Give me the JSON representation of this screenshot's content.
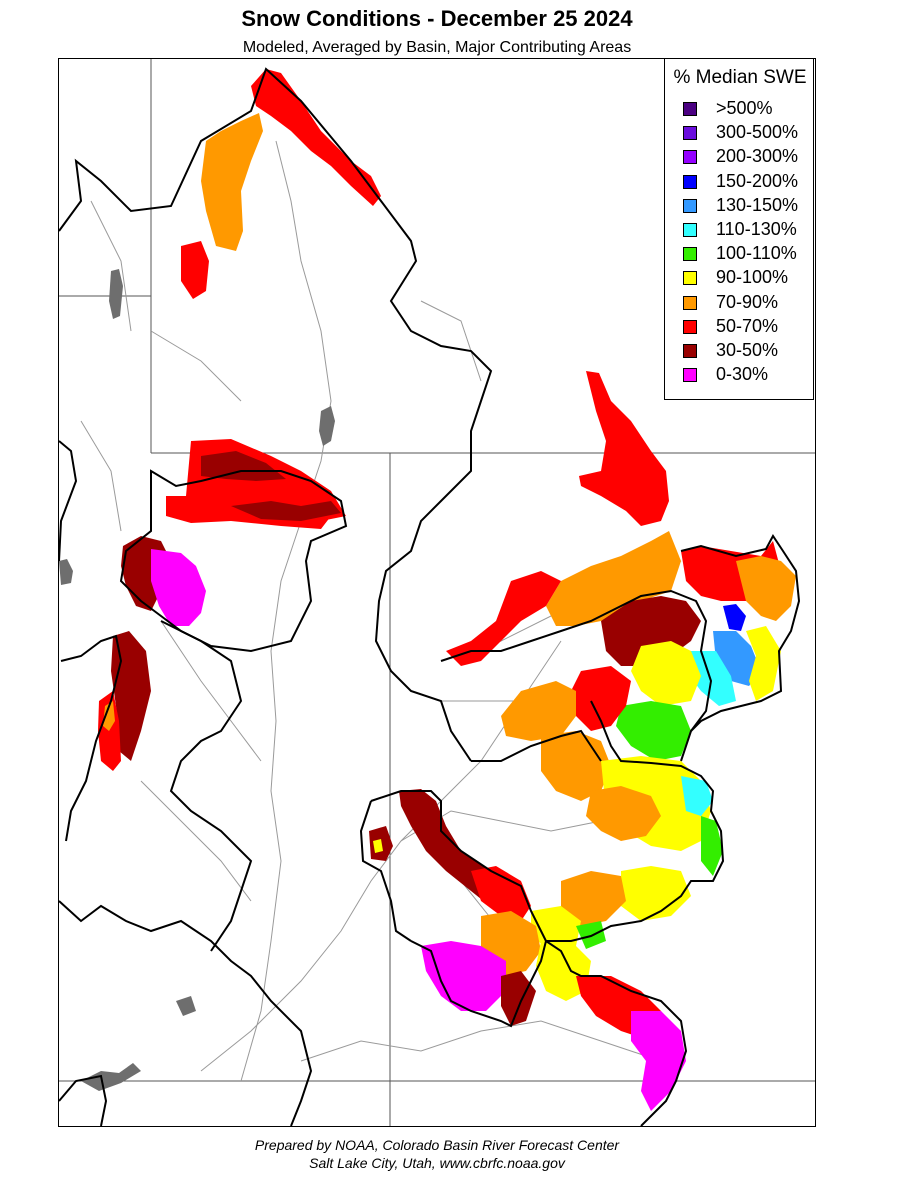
{
  "header": {
    "title": "Snow Conditions - December 25 2024",
    "subtitle": "Modeled, Averaged by Basin, Major Contributing Areas"
  },
  "legend": {
    "title": "% Median SWE",
    "items": [
      {
        "label": ">500%",
        "color": "#4b0082"
      },
      {
        "label": "300-500%",
        "color": "#6a0ddd"
      },
      {
        "label": "200-300%",
        "color": "#9400ff"
      },
      {
        "label": "150-200%",
        "color": "#0000ff"
      },
      {
        "label": "130-150%",
        "color": "#3399ff"
      },
      {
        "label": "110-130%",
        "color": "#33ffff"
      },
      {
        "label": "100-110%",
        "color": "#33ee00"
      },
      {
        "label": "90-100%",
        "color": "#ffff00"
      },
      {
        "label": "70-90%",
        "color": "#ff9900"
      },
      {
        "label": "50-70%",
        "color": "#ff0000"
      },
      {
        "label": "30-50%",
        "color": "#990000"
      },
      {
        "label": "0-30%",
        "color": "#ff00ff"
      }
    ]
  },
  "footer": {
    "line1": "Prepared by NOAA, Colorado Basin River Forecast Center",
    "line2": "Salt Lake City, Utah, www.cbrfc.noaa.gov"
  }
}
